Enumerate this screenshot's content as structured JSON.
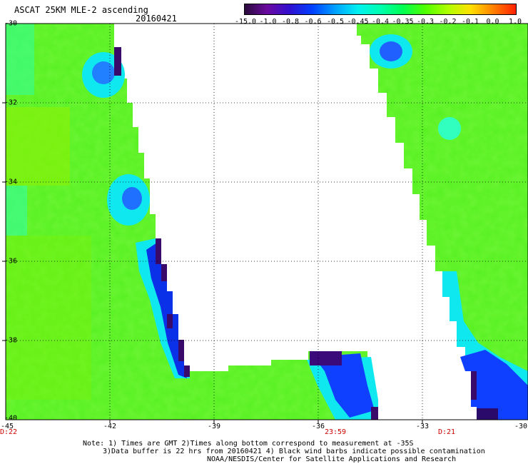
{
  "title": "ASCAT 25KM MLE-2 ascending",
  "date": "20160421",
  "colorbar": {
    "labels": [
      "-15.0",
      "-1.0",
      "-0.8",
      "-0.6",
      "-0.5",
      "-0.45",
      "-0.4",
      "-0.35",
      "-0.3",
      "-0.2",
      "-0.1",
      "0.0",
      "1.0"
    ],
    "colors": [
      "#2a0a3a",
      "#6a0aa0",
      "#3010d0",
      "#0040ff",
      "#00a0ff",
      "#00f0f0",
      "#00ffb0",
      "#00ff50",
      "#50ff00",
      "#b0ff00",
      "#ffe000",
      "#ff8000",
      "#ff2000"
    ]
  },
  "axes": {
    "lon_labels": [
      "-45",
      "-42",
      "-39",
      "-36",
      "-33",
      "-30"
    ],
    "lat_labels": [
      "-30",
      "-32",
      "-34",
      "-36",
      "-38",
      "-40"
    ]
  },
  "times": [
    "D:22",
    "23:59",
    "D:21"
  ],
  "notes": [
    "Note: 1) Times are GMT 2)Times along bottom correspond to measurement at -35S",
    "3)Data buffer is 22 hrs from 20160421 4) Black wind barbs indicate possible contamination",
    "NOAA/NESDIS/Center for Satellite Applications and Research"
  ]
}
